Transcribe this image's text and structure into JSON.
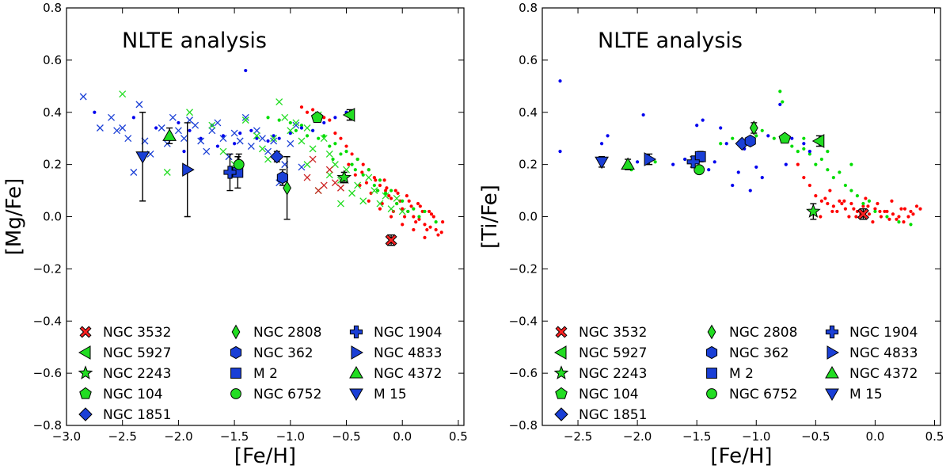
{
  "chart_data": [
    {
      "type": "scatter",
      "title": "NLTE analysis",
      "xlabel": "[Fe/H]",
      "ylabel": "[Mg/Fe]",
      "xlim": [
        -3.0,
        0.55
      ],
      "ylim": [
        -0.8,
        0.8
      ],
      "xticks": [
        -3.0,
        -2.5,
        -2.0,
        -1.5,
        -1.0,
        -0.5,
        0.0,
        0.5
      ],
      "xtick_labels": [
        "−3.0",
        "−2.5",
        "−2.0",
        "−1.5",
        "−1.0",
        "−0.5",
        "0.0",
        "0.5"
      ],
      "yticks": [
        -0.8,
        -0.6,
        -0.4,
        -0.2,
        0.0,
        0.2,
        0.4,
        0.6,
        0.8
      ],
      "ytick_labels": [
        "−0.8",
        "−0.6",
        "−0.4",
        "−0.2",
        "0.0",
        "0.2",
        "0.4",
        "0.6",
        "0.8"
      ],
      "field_stars": [
        {
          "name": "red field stars",
          "marker": "dot",
          "color": "#ff0000",
          "x": [
            -0.6,
            -0.55,
            -0.5,
            -0.45,
            -0.4,
            -0.35,
            -0.3,
            -0.25,
            -0.2,
            -0.15,
            -0.1,
            -0.05,
            0.0,
            0.05,
            0.1,
            0.15,
            0.2,
            0.25,
            0.3,
            0.35,
            -0.42,
            -0.32,
            -0.22,
            -0.12,
            -0.02,
            0.08,
            0.18,
            0.28,
            -0.38,
            -0.28,
            -0.18,
            -0.08,
            0.02,
            0.12,
            0.22,
            0.32,
            -0.48,
            -0.36,
            -0.24,
            -0.14,
            -0.04,
            0.06,
            0.16,
            0.26,
            0.36,
            -0.3,
            -0.2,
            -0.1,
            0.0,
            0.1,
            0.2,
            -0.16,
            -0.06,
            0.04,
            0.14,
            0.24,
            -0.9,
            -0.85,
            -0.8,
            -0.7,
            -0.65
          ],
          "y": [
            0.32,
            0.3,
            0.27,
            0.24,
            0.22,
            0.2,
            0.18,
            0.15,
            0.12,
            0.1,
            0.07,
            0.05,
            0.03,
            0.02,
            0.0,
            -0.01,
            -0.03,
            -0.04,
            -0.05,
            -0.06,
            0.16,
            0.13,
            0.1,
            0.08,
            0.06,
            0.04,
            0.02,
            0.0,
            0.12,
            0.09,
            0.05,
            0.02,
            0.0,
            -0.02,
            -0.05,
            -0.07,
            0.2,
            0.17,
            0.14,
            0.11,
            0.09,
            0.06,
            0.04,
            0.01,
            -0.02,
            0.06,
            0.03,
            0.0,
            -0.03,
            -0.05,
            -0.08,
            0.14,
            0.1,
            0.08,
            0.05,
            0.02,
            0.42,
            0.4,
            0.41,
            0.38,
            0.37
          ]
        },
        {
          "name": "green field stars",
          "marker": "dot",
          "color": "#00dd00",
          "x": [
            -1.0,
            -0.9,
            -0.8,
            -0.7,
            -0.6,
            -0.5,
            -0.4,
            -0.3,
            -0.2,
            -0.1,
            0.0,
            0.1,
            0.2,
            -0.95,
            -0.85,
            -0.75,
            -0.65,
            -0.55,
            -0.45,
            -0.35,
            -0.25,
            -0.15,
            -0.05,
            0.05,
            0.15,
            0.3,
            -1.2,
            -1.1,
            -0.62,
            -0.42,
            -0.22
          ],
          "y": [
            0.36,
            0.35,
            0.33,
            0.31,
            0.28,
            0.25,
            0.22,
            0.18,
            0.14,
            0.1,
            0.06,
            0.03,
            0.02,
            0.33,
            0.31,
            0.3,
            0.27,
            0.24,
            0.2,
            0.16,
            0.12,
            0.09,
            0.05,
            0.02,
            0.0,
            -0.02,
            0.38,
            0.37,
            0.22,
            0.18,
            0.1
          ]
        },
        {
          "name": "blue field stars",
          "marker": "dot",
          "color": "#0000ee",
          "x": [
            -2.75,
            -2.4,
            -2.2,
            -2.0,
            -1.9,
            -1.8,
            -1.7,
            -1.6,
            -1.5,
            -1.45,
            -1.4,
            -1.3,
            -1.2,
            -1.1,
            -1.0,
            -0.9,
            -0.8,
            -0.7,
            -0.6,
            -0.5,
            -2.1,
            -1.95,
            -1.65,
            -1.35,
            -1.15
          ],
          "y": [
            0.4,
            0.38,
            0.34,
            0.36,
            0.33,
            0.3,
            0.35,
            0.31,
            0.28,
            0.32,
            0.56,
            0.3,
            0.29,
            0.3,
            0.32,
            0.34,
            0.33,
            0.36,
            0.38,
            0.4,
            0.3,
            0.25,
            0.27,
            0.33,
            0.31
          ]
        },
        {
          "name": "blue cross stars",
          "marker": "x",
          "color": "#1a3fd6",
          "x": [
            -2.85,
            -2.7,
            -2.6,
            -2.55,
            -2.5,
            -2.45,
            -2.4,
            -2.35,
            -2.3,
            -2.25,
            -2.15,
            -2.1,
            -2.05,
            -2.0,
            -1.95,
            -1.9,
            -1.85,
            -1.8,
            -1.75,
            -1.7,
            -1.65,
            -1.6,
            -1.55,
            -1.5,
            -1.45,
            -1.4,
            -1.35,
            -1.3,
            -1.25,
            -1.2,
            -1.15,
            -1.1,
            -1.05,
            -1.0,
            -0.95,
            -0.9
          ],
          "y": [
            0.46,
            0.34,
            0.38,
            0.33,
            0.34,
            0.3,
            0.17,
            0.43,
            0.29,
            0.24,
            0.34,
            0.28,
            0.38,
            0.33,
            0.3,
            0.37,
            0.35,
            0.29,
            0.25,
            0.33,
            0.36,
            0.3,
            0.23,
            0.32,
            0.29,
            0.38,
            0.27,
            0.33,
            0.3,
            0.25,
            0.29,
            0.13,
            0.2,
            0.28,
            0.35,
            0.19
          ]
        },
        {
          "name": "green cross stars",
          "marker": "x",
          "color": "#22dd22",
          "x": [
            -2.5,
            -2.1,
            -1.9,
            -1.7,
            -1.6,
            -1.5,
            -1.4,
            -1.3,
            -1.25,
            -1.2,
            -1.15,
            -1.1,
            -1.05,
            -1.0,
            -0.95,
            -0.9,
            -0.85,
            -0.8,
            -0.75,
            -0.7,
            -0.65,
            -0.6,
            -0.55,
            -0.5,
            -0.45,
            -0.4,
            -0.35,
            -0.3,
            -0.25,
            -0.2,
            -0.15,
            -0.1,
            -0.05,
            0.0,
            -0.85,
            -0.75,
            -0.65,
            -0.55
          ],
          "y": [
            0.47,
            0.17,
            0.4,
            0.35,
            0.25,
            0.2,
            0.37,
            0.31,
            0.26,
            0.22,
            0.3,
            0.44,
            0.38,
            0.33,
            0.36,
            0.29,
            0.34,
            0.26,
            0.39,
            0.3,
            0.24,
            0.2,
            0.14,
            0.18,
            0.09,
            0.12,
            0.06,
            0.15,
            0.1,
            0.05,
            0.08,
            0.03,
            0.07,
            0.02,
            0.2,
            0.1,
            0.16,
            0.05
          ]
        },
        {
          "name": "red cross stars",
          "marker": "x",
          "color": "#cc2020",
          "x": [
            -0.85,
            -0.8,
            -0.75,
            -0.7,
            -0.65,
            -0.6,
            -0.55
          ],
          "y": [
            0.15,
            0.22,
            0.1,
            0.12,
            0.18,
            0.13,
            0.11
          ]
        }
      ],
      "clusters": [
        {
          "name": "NGC 3532",
          "marker": "X",
          "color": "#ff2020",
          "x": -0.1,
          "y": -0.09,
          "err": 0.02
        },
        {
          "name": "NGC 5927",
          "marker": "triangle-left",
          "color": "#22dd22",
          "x": -0.47,
          "y": 0.39,
          "err": 0.02
        },
        {
          "name": "NGC 2243",
          "marker": "star",
          "color": "#22dd22",
          "x": -0.52,
          "y": 0.15,
          "err": 0.02
        },
        {
          "name": "NGC 104",
          "marker": "pentagon",
          "color": "#22dd22",
          "x": -0.76,
          "y": 0.38,
          "err": 0.01
        },
        {
          "name": "NGC 1851",
          "marker": "diamond",
          "color": "#1a3fd6",
          "x": -1.12,
          "y": 0.23,
          "err": 0.02
        },
        {
          "name": "NGC 2808",
          "marker": "thin-diamond",
          "color": "#22dd22",
          "x": -1.03,
          "y": 0.11,
          "err": 0.12
        },
        {
          "name": "NGC 362",
          "marker": "hexagon",
          "color": "#1a3fd6",
          "x": -1.07,
          "y": 0.15,
          "err": 0.03
        },
        {
          "name": "M 2",
          "marker": "square",
          "color": "#1a3fd6",
          "x": -1.47,
          "y": 0.17,
          "err": 0.06
        },
        {
          "name": "NGC 6752",
          "marker": "circle",
          "color": "#22dd22",
          "x": -1.46,
          "y": 0.2,
          "err": 0.04
        },
        {
          "name": "NGC 1904",
          "marker": "plus",
          "color": "#1a3fd6",
          "x": -1.54,
          "y": 0.17,
          "err": 0.07
        },
        {
          "name": "NGC 4833",
          "marker": "triangle-right",
          "color": "#1a3fd6",
          "x": -1.92,
          "y": 0.18,
          "err": 0.18
        },
        {
          "name": "NGC 4372",
          "marker": "triangle-up",
          "color": "#22dd22",
          "x": -2.08,
          "y": 0.31,
          "err": 0.03
        },
        {
          "name": "M 15",
          "marker": "triangle-down",
          "color": "#1a3fd6",
          "x": -2.32,
          "y": 0.23,
          "err": 0.17
        }
      ],
      "legend": {
        "location": "lower-left",
        "columns": [
          [
            "NGC 3532",
            "NGC 5927",
            "NGC 2243",
            "NGC 104",
            "NGC 1851"
          ],
          [
            "NGC 2808",
            "NGC 362",
            "M 2",
            "NGC 6752"
          ],
          [
            "NGC 1904",
            "NGC 4833",
            "NGC 4372",
            "M 15"
          ]
        ]
      }
    },
    {
      "type": "scatter",
      "title": "NLTE analysis",
      "xlabel": "[Fe/H]",
      "ylabel": "[Ti/Fe]",
      "xlim": [
        -2.8,
        0.55
      ],
      "ylim": [
        -0.8,
        0.8
      ],
      "xticks": [
        -2.5,
        -2.0,
        -1.5,
        -1.0,
        -0.5,
        0.0,
        0.5
      ],
      "xtick_labels": [
        "−2.5",
        "−2.0",
        "−1.5",
        "−1.0",
        "−0.5",
        "0.0",
        "0.5"
      ],
      "yticks": [
        -0.8,
        -0.6,
        -0.4,
        -0.2,
        0.0,
        0.2,
        0.4,
        0.6,
        0.8
      ],
      "ytick_labels": [
        "−0.8",
        "−0.6",
        "−0.4",
        "−0.2",
        "0.0",
        "0.2",
        "0.4",
        "0.6",
        "0.8"
      ],
      "field_stars": [
        {
          "name": "red field stars",
          "marker": "dot",
          "color": "#ff0000",
          "x": [
            -0.55,
            -0.5,
            -0.45,
            -0.4,
            -0.35,
            -0.3,
            -0.25,
            -0.2,
            -0.15,
            -0.1,
            -0.05,
            0.0,
            0.05,
            0.1,
            0.15,
            0.2,
            0.25,
            0.3,
            0.35,
            -0.52,
            -0.42,
            -0.32,
            -0.22,
            -0.12,
            -0.02,
            0.08,
            0.18,
            0.28,
            -0.38,
            -0.28,
            -0.18,
            -0.08,
            0.02,
            0.12,
            0.22,
            0.32,
            -0.46,
            -0.36,
            -0.26,
            -0.16,
            -0.06,
            0.04,
            0.14,
            0.24,
            0.38,
            -0.6,
            -0.65
          ],
          "y": [
            0.12,
            0.08,
            0.06,
            0.05,
            0.04,
            0.06,
            0.03,
            0.05,
            0.02,
            0.04,
            0.01,
            0.03,
            0.0,
            0.02,
            0.01,
            0.0,
            0.03,
            0.02,
            0.04,
            0.03,
            0.07,
            0.02,
            0.0,
            0.01,
            -0.02,
            0.02,
            -0.01,
            0.0,
            0.1,
            0.05,
            0.03,
            0.07,
            0.05,
            -0.01,
            0.03,
            0.01,
            0.0,
            0.02,
            0.06,
            0.0,
            0.04,
            0.02,
            0.06,
            -0.02,
            0.03,
            0.15,
            0.2
          ]
        },
        {
          "name": "green field stars",
          "marker": "dot",
          "color": "#00dd00",
          "x": [
            -2.05,
            -1.85,
            -1.6,
            -1.3,
            -1.2,
            -1.0,
            -0.95,
            -0.85,
            -0.8,
            -0.75,
            -0.7,
            -0.65,
            -0.6,
            -0.55,
            -0.5,
            -0.45,
            -0.4,
            -0.35,
            -0.3,
            -0.25,
            -0.2,
            -0.15,
            -0.1,
            -0.05,
            0.0,
            0.1,
            0.2,
            0.3,
            -0.78,
            -0.6,
            -0.4,
            -0.2
          ],
          "y": [
            0.18,
            0.21,
            0.22,
            0.28,
            0.3,
            0.31,
            0.33,
            0.3,
            0.48,
            0.29,
            0.27,
            0.25,
            0.26,
            0.24,
            0.2,
            0.22,
            0.18,
            0.15,
            0.17,
            0.12,
            0.1,
            0.08,
            0.05,
            0.06,
            0.02,
            0.0,
            -0.02,
            -0.03,
            0.44,
            0.3,
            0.25,
            0.2
          ]
        },
        {
          "name": "blue field stars",
          "marker": "dot",
          "color": "#0000ee",
          "x": [
            -2.65,
            -2.65,
            -2.3,
            -2.25,
            -2.0,
            -1.95,
            -1.7,
            -1.6,
            -1.5,
            -1.45,
            -1.4,
            -1.35,
            -1.3,
            -1.2,
            -1.15,
            -1.1,
            -1.05,
            -0.95,
            -0.9,
            -0.8,
            -0.75,
            -0.7,
            -0.6,
            -0.55,
            -1.25,
            -1.0
          ],
          "y": [
            0.52,
            0.25,
            0.28,
            0.31,
            0.21,
            0.39,
            0.2,
            0.22,
            0.35,
            0.37,
            0.18,
            0.21,
            0.34,
            0.12,
            0.17,
            0.26,
            0.1,
            0.15,
            0.31,
            0.43,
            0.2,
            0.3,
            0.28,
            0.25,
            0.28,
            0.19
          ]
        }
      ],
      "clusters": [
        {
          "name": "NGC 3532",
          "marker": "X",
          "color": "#ff2020",
          "x": -0.1,
          "y": 0.01,
          "err": 0.02
        },
        {
          "name": "NGC 5927",
          "marker": "triangle-left",
          "color": "#22dd22",
          "x": -0.47,
          "y": 0.29,
          "err": 0.02
        },
        {
          "name": "NGC 2243",
          "marker": "star",
          "color": "#22dd22",
          "x": -0.52,
          "y": 0.02,
          "err": 0.03
        },
        {
          "name": "NGC 104",
          "marker": "pentagon",
          "color": "#22dd22",
          "x": -0.76,
          "y": 0.3,
          "err": 0.01
        },
        {
          "name": "NGC 1851",
          "marker": "diamond",
          "color": "#1a3fd6",
          "x": -1.12,
          "y": 0.28,
          "err": 0.01
        },
        {
          "name": "NGC 2808",
          "marker": "thin-diamond",
          "color": "#22dd22",
          "x": -1.02,
          "y": 0.34,
          "err": 0.02
        },
        {
          "name": "NGC 362",
          "marker": "hexagon",
          "color": "#1a3fd6",
          "x": -1.05,
          "y": 0.29,
          "err": 0.01
        },
        {
          "name": "M 2",
          "marker": "square",
          "color": "#1a3fd6",
          "x": -1.47,
          "y": 0.23,
          "err": 0.02
        },
        {
          "name": "NGC 6752",
          "marker": "circle",
          "color": "#22dd22",
          "x": -1.48,
          "y": 0.18,
          "err": 0.01
        },
        {
          "name": "NGC 1904",
          "marker": "plus",
          "color": "#1a3fd6",
          "x": -1.53,
          "y": 0.21,
          "err": 0.02
        },
        {
          "name": "NGC 4833",
          "marker": "triangle-right",
          "color": "#1a3fd6",
          "x": -1.9,
          "y": 0.22,
          "err": 0.02
        },
        {
          "name": "NGC 4372",
          "marker": "triangle-up",
          "color": "#22dd22",
          "x": -2.08,
          "y": 0.2,
          "err": 0.02
        },
        {
          "name": "M 15",
          "marker": "triangle-down",
          "color": "#1a3fd6",
          "x": -2.3,
          "y": 0.21,
          "err": 0.02
        }
      ],
      "legend": {
        "location": "lower-left",
        "columns": [
          [
            "NGC 3532",
            "NGC 5927",
            "NGC 2243",
            "NGC 104",
            "NGC 1851"
          ],
          [
            "NGC 2808",
            "NGC 362",
            "M 2",
            "NGC 6752"
          ],
          [
            "NGC 1904",
            "NGC 4833",
            "NGC 4372",
            "M 15"
          ]
        ]
      }
    }
  ]
}
